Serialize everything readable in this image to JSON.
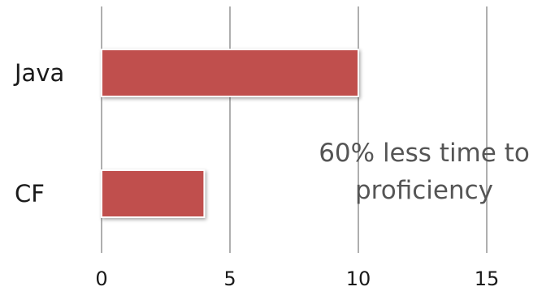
{
  "chart_data": {
    "type": "bar",
    "orientation": "horizontal",
    "categories": [
      "Java",
      "CF"
    ],
    "values": [
      10,
      4
    ],
    "xlim": [
      0,
      15
    ],
    "x_ticks": [
      "0",
      "5",
      "10",
      "15"
    ],
    "grid": true,
    "bar_color": "#c0504d",
    "annotation_lines": [
      "60% less time to",
      "proficiency"
    ]
  }
}
